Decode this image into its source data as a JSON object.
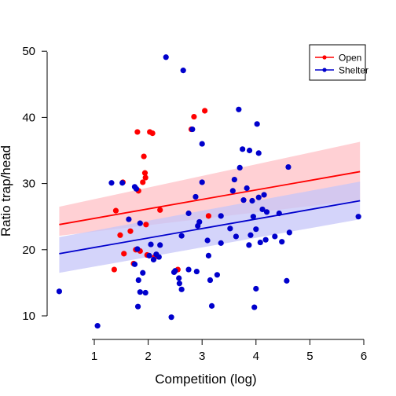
{
  "chart_data": {
    "type": "scatter",
    "xlabel": "Competition (log)",
    "ylabel": "Ratio trap/head",
    "xlim": [
      0.25,
      6.1
    ],
    "ylim": [
      6.5,
      51
    ],
    "xticks": [
      "1",
      "2",
      "3",
      "4",
      "5",
      "6"
    ],
    "yticks": [
      "10",
      "20",
      "30",
      "40",
      "50"
    ],
    "legend_position": "top-right",
    "series": [
      {
        "name": "Open",
        "color": "#ff0000",
        "band_color": "#ffc0c6",
        "points": [
          [
            1.37,
            17.0
          ],
          [
            1.4,
            25.9
          ],
          [
            1.48,
            22.2
          ],
          [
            1.53,
            30.2
          ],
          [
            1.55,
            19.4
          ],
          [
            1.67,
            22.8
          ],
          [
            1.73,
            17.9
          ],
          [
            1.77,
            20.0
          ],
          [
            1.8,
            37.8
          ],
          [
            1.82,
            28.9
          ],
          [
            1.85,
            19.8
          ],
          [
            1.9,
            30.2
          ],
          [
            1.92,
            34.1
          ],
          [
            1.94,
            31.6
          ],
          [
            1.95,
            30.9
          ],
          [
            1.96,
            23.8
          ],
          [
            1.98,
            19.2
          ],
          [
            2.03,
            37.8
          ],
          [
            2.08,
            37.6
          ],
          [
            2.12,
            18.9
          ],
          [
            2.22,
            26.0
          ],
          [
            2.55,
            17.0
          ],
          [
            2.8,
            38.2
          ],
          [
            2.85,
            40.1
          ],
          [
            3.05,
            41.0
          ],
          [
            3.12,
            25.1
          ]
        ],
        "fit": {
          "x": [
            0.35,
            5.93
          ],
          "y": [
            23.8,
            31.8
          ]
        },
        "ci_lower": [
          22.1,
          27.5
        ],
        "ci_upper": [
          26.5,
          36.3
        ]
      },
      {
        "name": "Shelter",
        "color": "#0000cc",
        "band_color": "#c6c6f8",
        "points": [
          [
            0.35,
            13.7
          ],
          [
            1.06,
            8.5
          ],
          [
            1.32,
            30.1
          ],
          [
            1.52,
            30.1
          ],
          [
            1.64,
            24.6
          ],
          [
            1.75,
            17.8
          ],
          [
            1.75,
            29.5
          ],
          [
            1.78,
            29.2
          ],
          [
            1.8,
            20.1
          ],
          [
            1.81,
            11.4
          ],
          [
            1.82,
            15.4
          ],
          [
            1.85,
            24.0
          ],
          [
            1.85,
            13.6
          ],
          [
            1.9,
            16.5
          ],
          [
            1.95,
            13.5
          ],
          [
            2.02,
            19.1
          ],
          [
            2.05,
            20.8
          ],
          [
            2.1,
            18.5
          ],
          [
            2.15,
            19.3
          ],
          [
            2.2,
            18.9
          ],
          [
            2.22,
            20.7
          ],
          [
            2.33,
            49.1
          ],
          [
            2.43,
            9.8
          ],
          [
            2.48,
            16.6
          ],
          [
            2.5,
            16.8
          ],
          [
            2.57,
            15.7
          ],
          [
            2.58,
            14.9
          ],
          [
            2.62,
            14.0
          ],
          [
            2.62,
            22.1
          ],
          [
            2.65,
            47.1
          ],
          [
            2.75,
            17.0
          ],
          [
            2.75,
            25.5
          ],
          [
            2.82,
            38.2
          ],
          [
            2.88,
            28.0
          ],
          [
            2.9,
            16.7
          ],
          [
            2.92,
            23.6
          ],
          [
            2.95,
            24.2
          ],
          [
            3.0,
            36.0
          ],
          [
            3.0,
            30.2
          ],
          [
            3.1,
            21.4
          ],
          [
            3.12,
            19.1
          ],
          [
            3.15,
            15.4
          ],
          [
            3.18,
            11.5
          ],
          [
            3.28,
            16.2
          ],
          [
            3.35,
            25.1
          ],
          [
            3.35,
            21.0
          ],
          [
            3.52,
            23.2
          ],
          [
            3.57,
            28.9
          ],
          [
            3.6,
            30.6
          ],
          [
            3.63,
            22.0
          ],
          [
            3.68,
            41.2
          ],
          [
            3.7,
            32.4
          ],
          [
            3.75,
            35.2
          ],
          [
            3.77,
            27.5
          ],
          [
            3.83,
            29.3
          ],
          [
            3.87,
            20.7
          ],
          [
            3.88,
            35.0
          ],
          [
            3.9,
            22.2
          ],
          [
            3.93,
            27.4
          ],
          [
            3.95,
            25.0
          ],
          [
            3.97,
            11.3
          ],
          [
            4.0,
            14.1
          ],
          [
            4.0,
            23.1
          ],
          [
            4.02,
            39.0
          ],
          [
            4.05,
            27.9
          ],
          [
            4.05,
            34.6
          ],
          [
            4.08,
            21.1
          ],
          [
            4.12,
            26.1
          ],
          [
            4.15,
            28.3
          ],
          [
            4.18,
            21.5
          ],
          [
            4.2,
            25.7
          ],
          [
            4.35,
            22.0
          ],
          [
            4.43,
            25.5
          ],
          [
            4.48,
            21.2
          ],
          [
            4.57,
            15.3
          ],
          [
            4.6,
            32.5
          ],
          [
            4.62,
            22.6
          ],
          [
            5.9,
            25.0
          ]
        ],
        "fit": {
          "x": [
            0.35,
            5.93
          ],
          "y": [
            19.4,
            27.4
          ]
        },
        "ci_lower": [
          16.5,
          24.6
        ],
        "ci_upper": [
          21.9,
          30.3
        ]
      }
    ]
  }
}
